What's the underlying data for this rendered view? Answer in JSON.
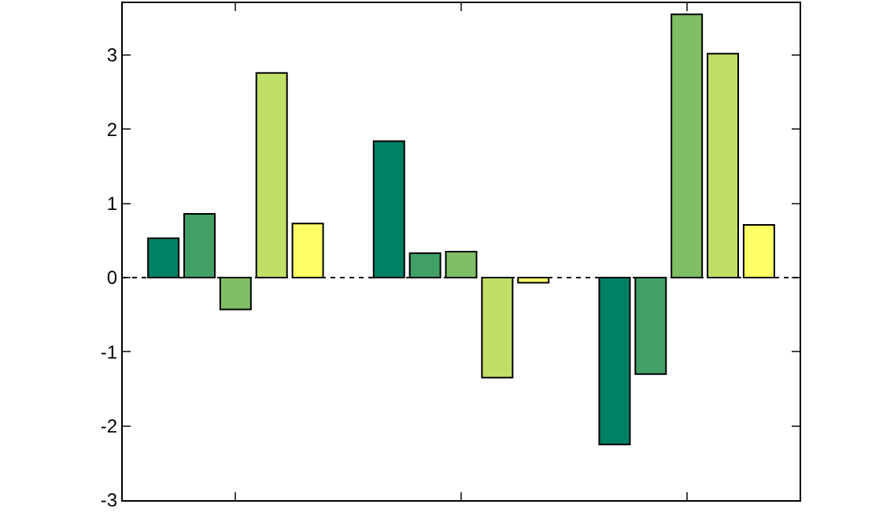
{
  "chart_data": {
    "type": "bar",
    "categories": [
      null,
      null,
      null
    ],
    "series": [
      {
        "color": "#008066",
        "values": [
          0.53,
          1.84,
          -2.25
        ]
      },
      {
        "color": "#40a066",
        "values": [
          0.86,
          0.33,
          -1.3
        ]
      },
      {
        "color": "#80bf66",
        "values": [
          -0.43,
          0.35,
          3.55
        ]
      },
      {
        "color": "#bfdf66",
        "values": [
          2.76,
          -1.35,
          3.02
        ]
      },
      {
        "color": "#ffff66",
        "values": [
          0.73,
          -0.07,
          0.71
        ]
      }
    ],
    "ylim": [
      -3,
      3.7
    ],
    "yticks": [
      -3,
      -2,
      -1,
      0,
      1,
      2,
      3
    ],
    "ref_lines": [
      {
        "axis": "y",
        "value": 0,
        "color": "#000000",
        "line_style": "dotted"
      }
    ],
    "tick_labels": "y"
  }
}
